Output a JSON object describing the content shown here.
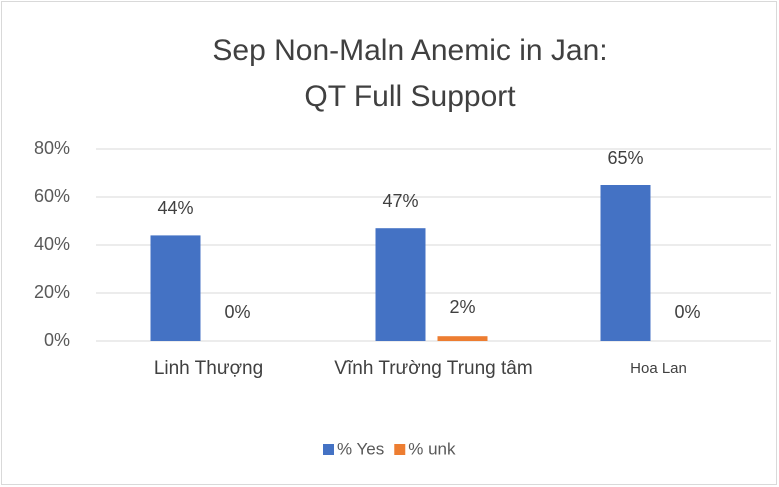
{
  "chart_data": {
    "type": "bar",
    "title": [
      "Sep Non-Maln Anemic in Jan:",
      "QT Full Support"
    ],
    "categories": [
      "Linh Thượng",
      "Vĩnh Trường Trung tâm",
      "Hoa Lan"
    ],
    "series": [
      {
        "name": "% Yes",
        "color": "#4472c4",
        "values": [
          44,
          47,
          65
        ],
        "value_labels": [
          "44%",
          "47%",
          "65%"
        ]
      },
      {
        "name": "% unk",
        "color": "#ed7d31",
        "values": [
          0,
          2,
          0
        ],
        "value_labels": [
          "0%",
          "2%",
          "0%"
        ]
      }
    ],
    "ylim": [
      0,
      80
    ],
    "yticks": [
      {
        "value": 0,
        "label": "0%"
      },
      {
        "value": 20,
        "label": "20%"
      },
      {
        "value": 40,
        "label": "40%"
      },
      {
        "value": 60,
        "label": "60%"
      },
      {
        "value": 80,
        "label": "80%"
      }
    ],
    "grid": true,
    "legend": "bottom"
  }
}
